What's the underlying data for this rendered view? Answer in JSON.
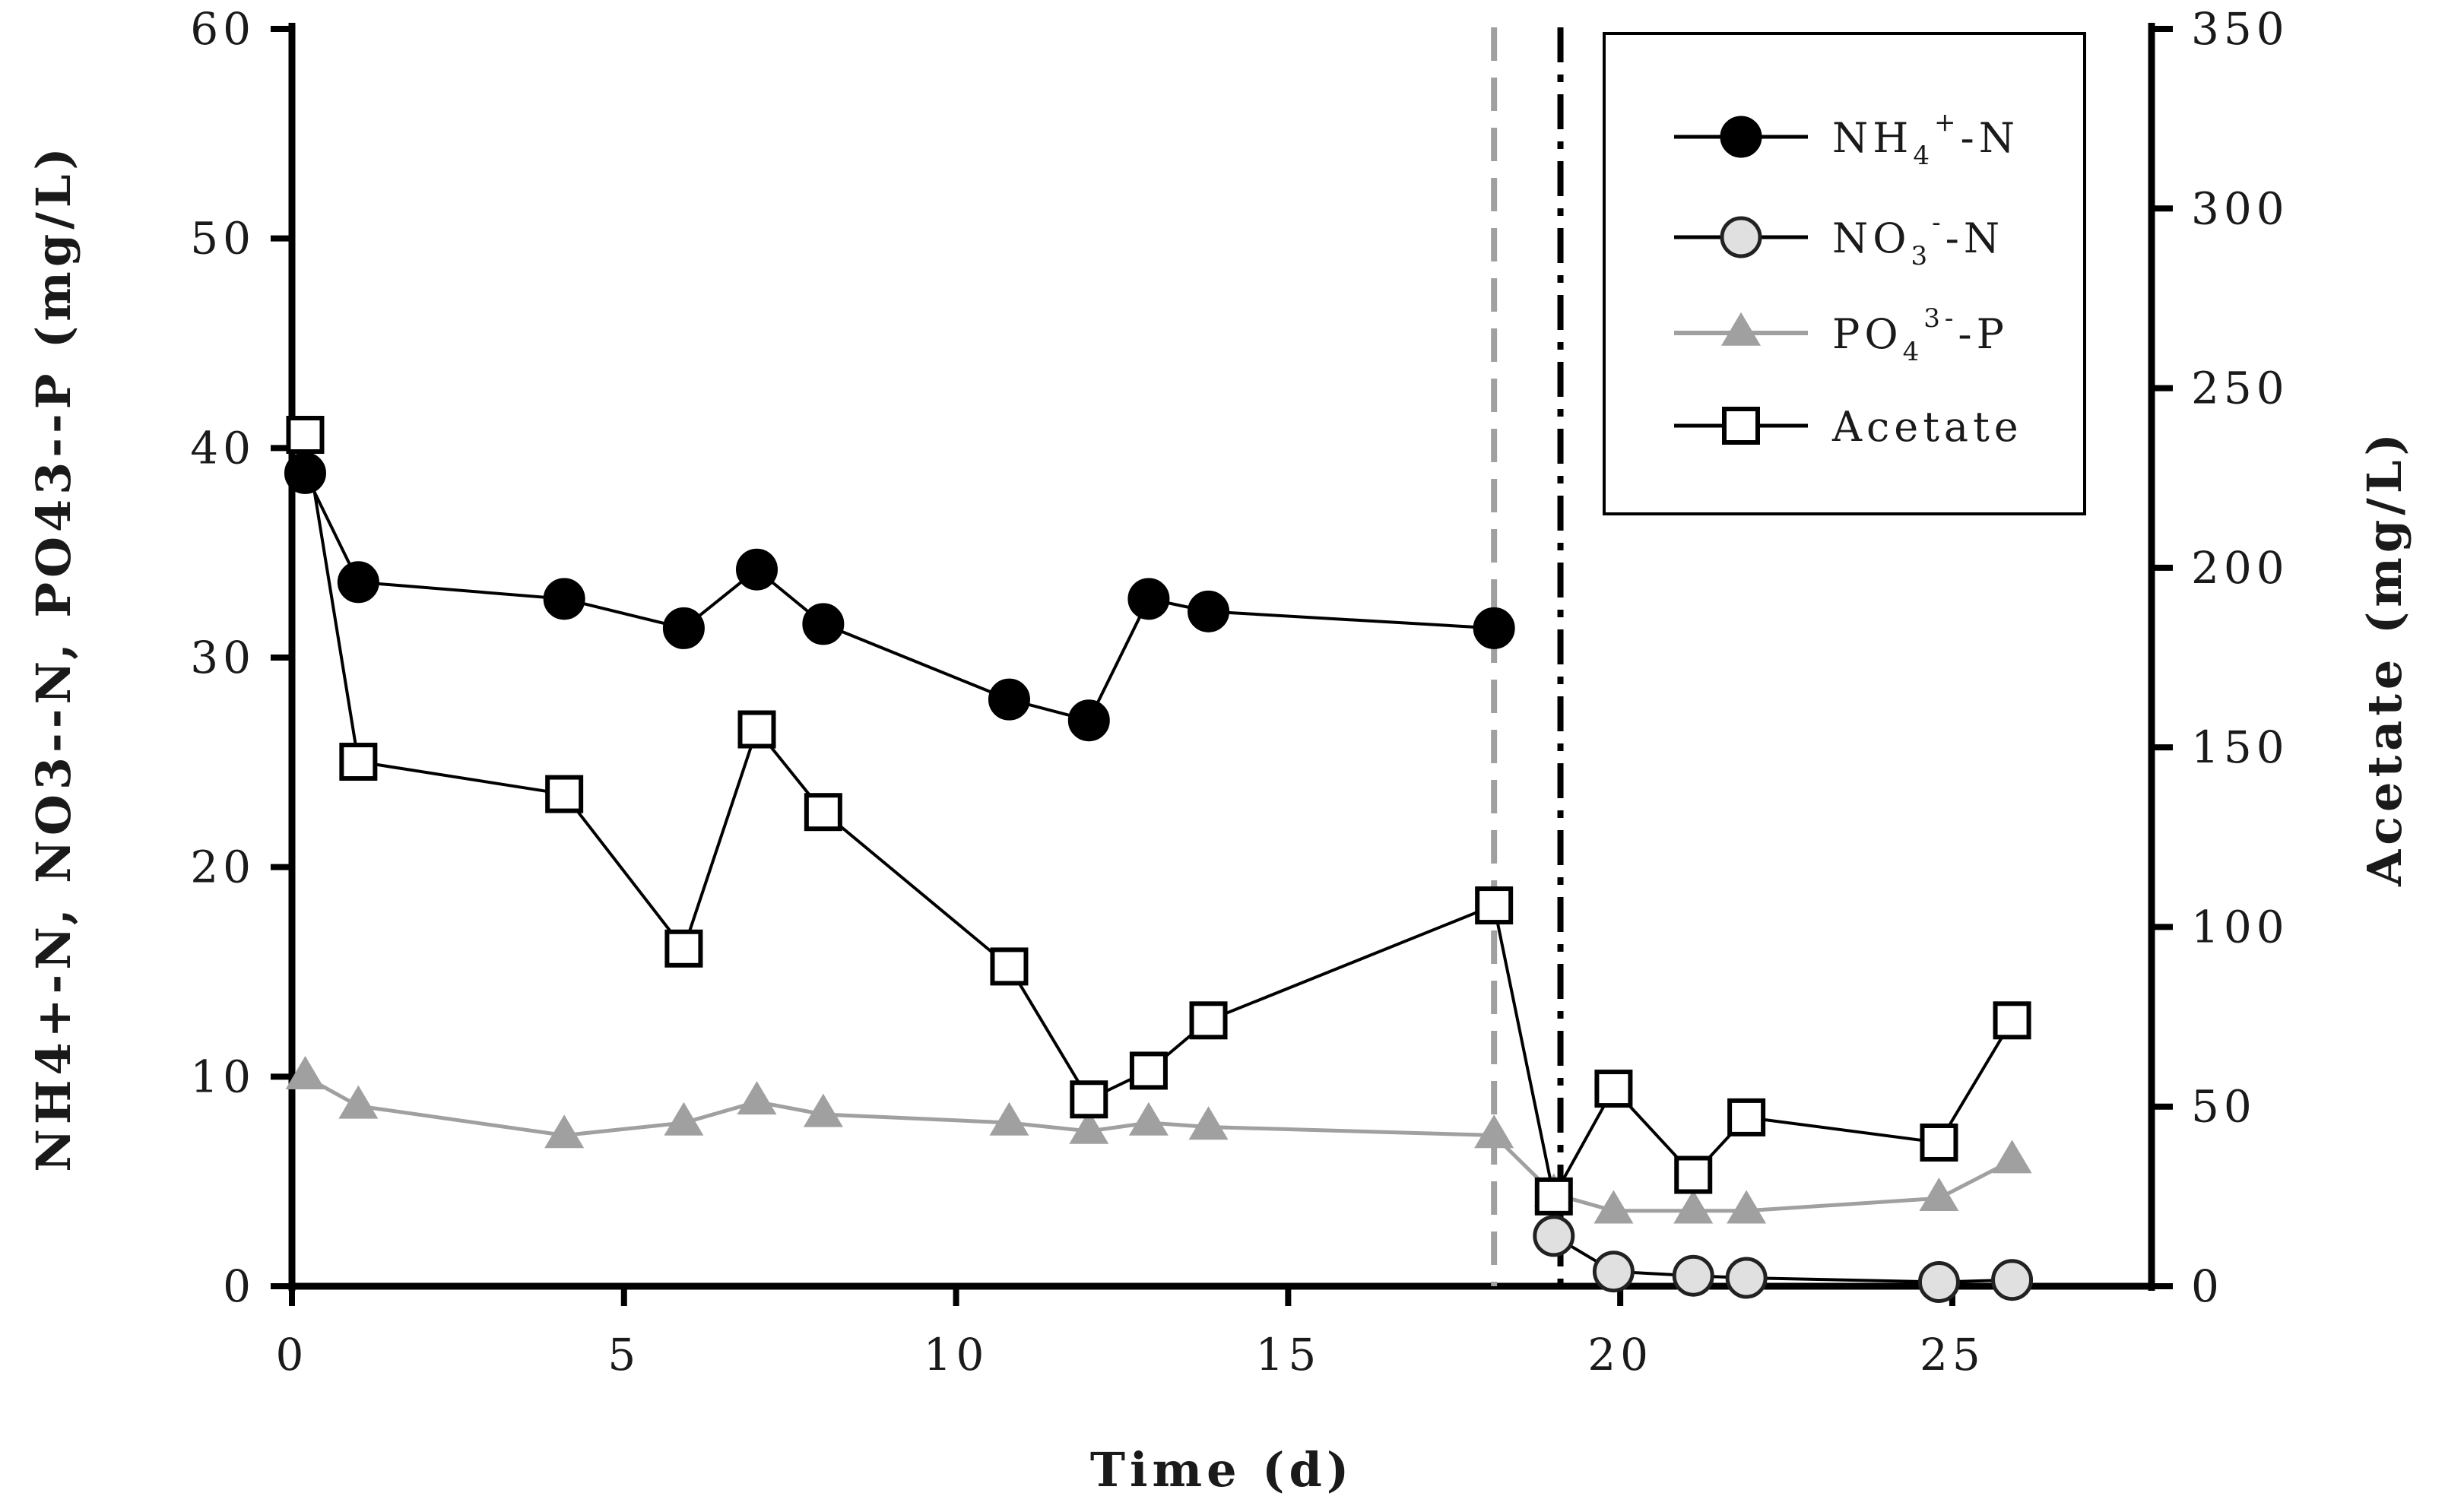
{
  "chart_data": {
    "type": "line",
    "title": "",
    "xlabel": "Time (d)",
    "ylabel": "NH4+-N, NO3--N, PO43--P (mg/L)",
    "ylabel_right": "Acetate (mg/L)",
    "xlim": [
      0,
      28
    ],
    "ylim": [
      0,
      60
    ],
    "ylim_right": [
      0,
      350
    ],
    "x_ticks": [
      "0",
      "5",
      "10",
      "15",
      "20",
      "25"
    ],
    "x_tick_values": [
      0,
      5,
      10,
      15,
      20,
      25
    ],
    "y_ticks": [
      "0",
      "10",
      "20",
      "30",
      "40",
      "50",
      "60"
    ],
    "y_tick_values": [
      0,
      10,
      20,
      30,
      40,
      50,
      60
    ],
    "y_ticks_right": [
      "0",
      "50",
      "100",
      "150",
      "200",
      "250",
      "300",
      "350"
    ],
    "y_tick_values_right": [
      0,
      50,
      100,
      150,
      200,
      250,
      300,
      350
    ],
    "legend_position": "top-right",
    "series": [
      {
        "name": "NH4+-N",
        "legend_base": "NH",
        "legend_sub": "4",
        "legend_sup": "+",
        "legend_tail": "-N",
        "axis": "left",
        "marker": "filled-circle",
        "color": "#000000",
        "x": [
          0.2,
          1,
          4.1,
          5.9,
          7,
          8,
          10.8,
          12,
          12.9,
          13.8,
          18.1
        ],
        "y": [
          38.8,
          33.6,
          32.8,
          31.4,
          34.2,
          31.6,
          28,
          27,
          32.8,
          32.2,
          31.4
        ]
      },
      {
        "name": "NO3--N",
        "legend_base": "NO",
        "legend_sub": "3",
        "legend_sup": "-",
        "legend_tail": "-N",
        "axis": "left",
        "marker": "open-circle",
        "color": "#000000",
        "x": [
          19,
          19.9,
          21.1,
          21.9,
          24.8,
          25.9
        ],
        "y": [
          2.4,
          0.7,
          0.5,
          0.4,
          0.2,
          0.3
        ]
      },
      {
        "name": "PO43--P",
        "legend_base": "PO",
        "legend_sub": "4",
        "legend_sup": "3-",
        "legend_tail": "-P",
        "axis": "left",
        "marker": "triangle",
        "color": "#a0a0a0",
        "x": [
          0.2,
          1,
          4.1,
          5.9,
          7,
          8,
          10.8,
          12,
          12.9,
          13.8,
          18.1,
          19,
          19.9,
          21.1,
          21.9,
          24.8,
          25.9
        ],
        "y": [
          10,
          8.6,
          7.2,
          7.8,
          8.8,
          8.2,
          7.8,
          7.4,
          7.8,
          7.6,
          7.2,
          4.4,
          3.6,
          3.6,
          3.6,
          4.2,
          6
        ]
      },
      {
        "name": "Acetate",
        "legend_base": "Acetate",
        "legend_sub": "",
        "legend_sup": "",
        "legend_tail": "",
        "axis": "right",
        "marker": "open-square",
        "color": "#000000",
        "x": [
          0.2,
          1,
          4.1,
          5.9,
          7,
          8,
          10.8,
          12,
          12.9,
          13.8,
          18.1,
          19,
          19.9,
          21.1,
          21.9,
          24.8,
          25.9
        ],
        "y": [
          237,
          146,
          137,
          94,
          155,
          132,
          89,
          52,
          60,
          74,
          106,
          25,
          55,
          31,
          47,
          40,
          74
        ]
      }
    ],
    "reference_lines": [
      {
        "x": 18.1,
        "color": "#a0a0a0",
        "style": "dashed"
      },
      {
        "x": 19.1,
        "color": "#000000",
        "style": "dash-dot"
      }
    ]
  }
}
